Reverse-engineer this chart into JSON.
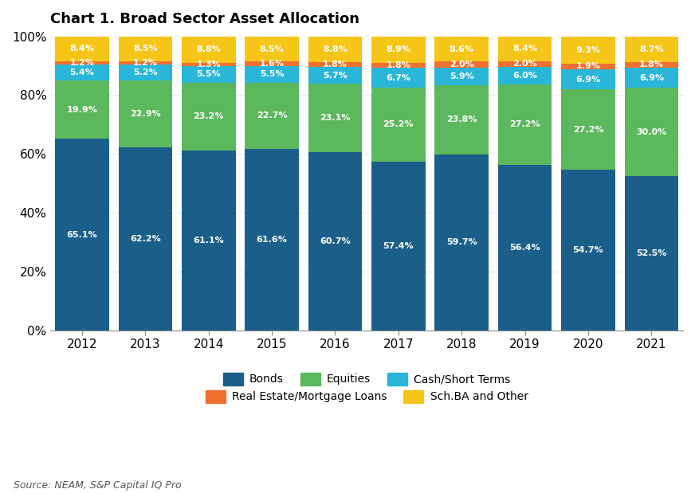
{
  "title": "Chart 1. Broad Sector Asset Allocation",
  "source": "Source: NEAM, S&P Capital IQ Pro",
  "years": [
    2012,
    2013,
    2014,
    2015,
    2016,
    2017,
    2018,
    2019,
    2020,
    2021
  ],
  "series": {
    "Bonds": [
      65.1,
      62.2,
      61.1,
      61.6,
      60.7,
      57.4,
      59.7,
      56.4,
      54.7,
      52.5
    ],
    "Equities": [
      19.9,
      22.9,
      23.2,
      22.7,
      23.1,
      25.2,
      23.8,
      27.2,
      27.2,
      30.0
    ],
    "Cash/Short Terms": [
      5.4,
      5.2,
      5.5,
      5.5,
      5.7,
      6.7,
      5.9,
      6.0,
      6.9,
      6.9
    ],
    "Real Estate/Mortgage Loans": [
      1.2,
      1.2,
      1.3,
      1.6,
      1.8,
      1.8,
      2.0,
      2.0,
      1.9,
      1.8
    ],
    "Sch.BA and Other": [
      8.4,
      8.5,
      8.8,
      8.5,
      8.8,
      8.9,
      8.6,
      8.4,
      9.3,
      8.7
    ]
  },
  "colors": {
    "Bonds": "#1a5f8a",
    "Equities": "#5cb85c",
    "Cash/Short Terms": "#29b6d8",
    "Real Estate/Mortgage Loans": "#f07030",
    "Sch.BA and Other": "#f5c518"
  },
  "ylim": [
    0,
    100
  ],
  "yticks": [
    0,
    20,
    40,
    60,
    80,
    100
  ],
  "ytick_labels": [
    "0%",
    "20%",
    "40%",
    "60%",
    "80%",
    "100%"
  ],
  "background_color": "#ffffff",
  "bar_width": 0.85,
  "title_fontsize": 13,
  "label_fontsize": 8.0,
  "legend_fontsize": 10,
  "source_fontsize": 9,
  "legend_row1": [
    "Bonds",
    "Equities",
    "Cash/Short Terms"
  ],
  "legend_row2": [
    "Real Estate/Mortgage Loans",
    "Sch.BA and Other"
  ]
}
